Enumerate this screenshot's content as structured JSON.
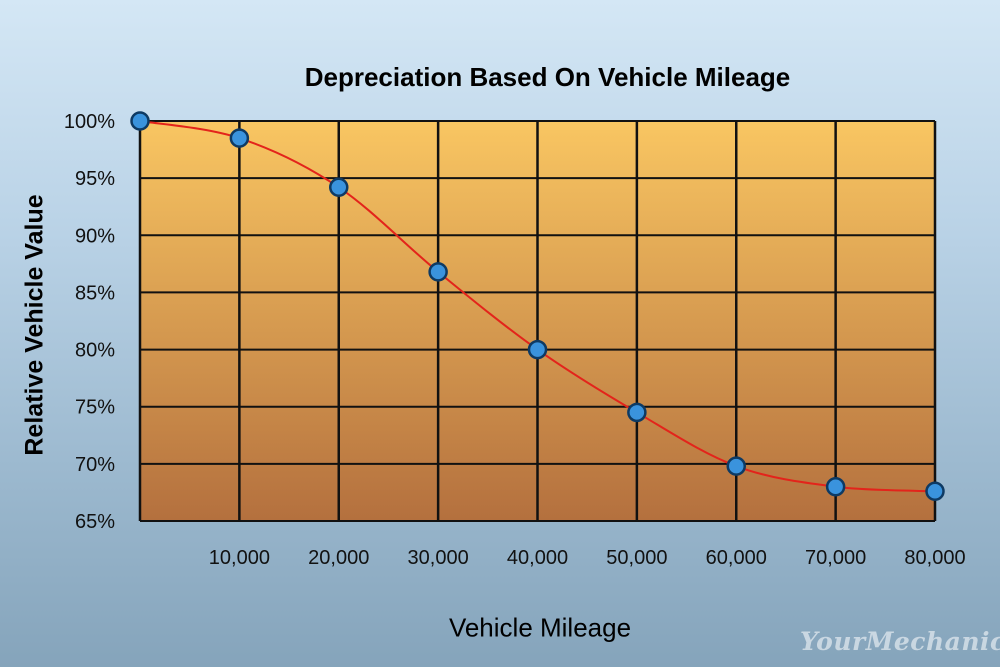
{
  "chart_data": {
    "type": "line",
    "title": "Depreciation Based On Vehicle Mileage",
    "xlabel": "Vehicle Mileage",
    "ylabel": "Relative Vehicle Value",
    "x": [
      0,
      10000,
      20000,
      30000,
      40000,
      50000,
      60000,
      70000,
      80000
    ],
    "series": [
      {
        "values": [
          100,
          98.5,
          94.2,
          86.8,
          80.0,
          74.5,
          69.8,
          68.0,
          67.6
        ]
      }
    ],
    "xlim": [
      0,
      80000
    ],
    "ylim": [
      65,
      100
    ],
    "x_tick_labels": [
      "10,000",
      "20,000",
      "30,000",
      "40,000",
      "50,000",
      "60,000",
      "70,000",
      "80,000"
    ],
    "y_tick_labels": [
      "65%",
      "70%",
      "75%",
      "80%",
      "85%",
      "90%",
      "95%",
      "100%"
    ],
    "grid": true,
    "colors": {
      "plot_top": "#f9c662",
      "plot_bottom": "#b4703e",
      "line": "#e3241b",
      "marker_fill": "#3a93dd",
      "marker_stroke": "#0e3a63"
    }
  },
  "watermark": "YourMechanic"
}
